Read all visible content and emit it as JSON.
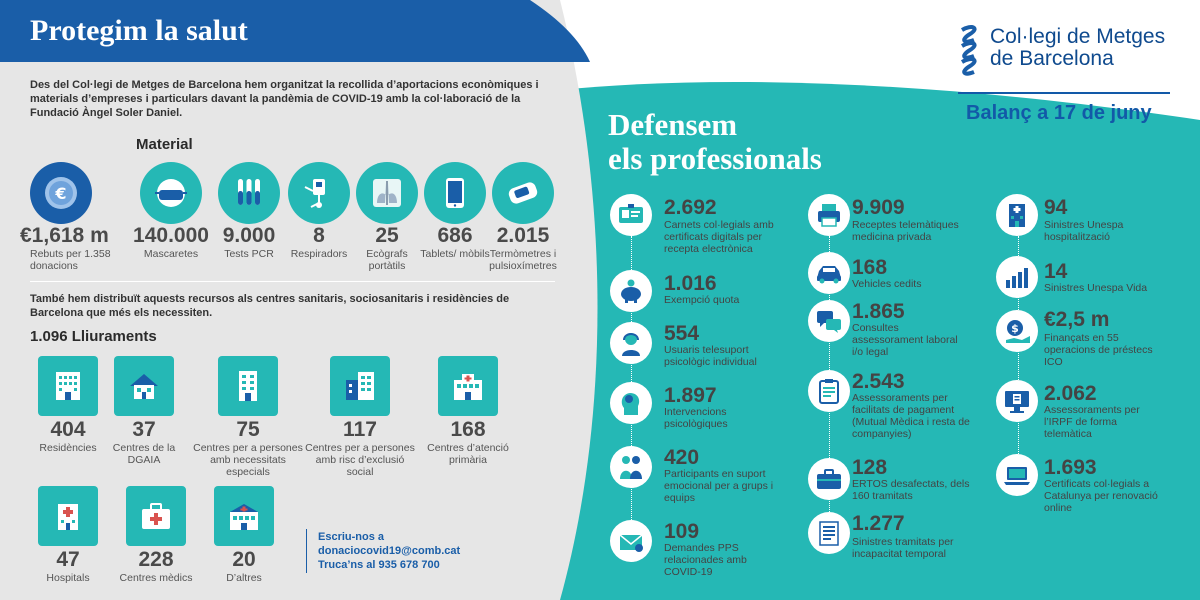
{
  "header": {
    "title": "Protegim la salut",
    "logo_text": [
      "Col·legi de Metges",
      "de Barcelona"
    ],
    "balance": "Balanç a 17 de juny"
  },
  "left": {
    "intro": "Des del Col·legi de Metges de Barcelona hem organitzat la recollida d’aportacions econòmiques i materials d’empreses i particulars davant la pandèmia de COVID-19 amb la col·laboració de la Fundació Àngel Soler Daniel.",
    "material_title": "Material",
    "material": [
      {
        "icon": "euro-coin-icon",
        "value": "€1,618 m",
        "label": "Rebuts per 1.358 donacions"
      },
      {
        "icon": "face-mask-icon",
        "value": "140.000",
        "label": "Mascaretes"
      },
      {
        "icon": "test-tubes-icon",
        "value": "9.000",
        "label": "Tests PCR"
      },
      {
        "icon": "ventilator-icon",
        "value": "8",
        "label": "Respiradors"
      },
      {
        "icon": "xray-lungs-icon",
        "value": "25",
        "label": "Ecògrafs portàtils"
      },
      {
        "icon": "tablet-icon",
        "value": "686",
        "label": "Tablets/ mòbils"
      },
      {
        "icon": "oximeter-icon",
        "value": "2.015",
        "label": "Termòmetres i pulsioxímetres"
      }
    ],
    "also": "També hem distribuït aquests recursos als centres sanitaris, sociosanitaris i residències de Barcelona que més els necessiten.",
    "deliveries_title": "1.096 Lliuraments",
    "deliveries": [
      {
        "icon": "residence-building-icon",
        "value": "404",
        "label": "Residències"
      },
      {
        "icon": "house-icon",
        "value": "37",
        "label": "Centres de la DGAIA"
      },
      {
        "icon": "tall-building-icon",
        "value": "75",
        "label": "Centres per a persones amb necessitats especials"
      },
      {
        "icon": "city-buildings-icon",
        "value": "117",
        "label": "Centres per a persones amb risc d’exclusió social"
      },
      {
        "icon": "clinic-icon",
        "value": "168",
        "label": "Centres d’atenció primària"
      },
      {
        "icon": "hospital-icon",
        "value": "47",
        "label": "Hospitals"
      },
      {
        "icon": "medical-kit-icon",
        "value": "228",
        "label": "Centres mèdics"
      },
      {
        "icon": "other-building-icon",
        "value": "20",
        "label": "D’altres"
      }
    ],
    "contact": {
      "line1": "Escriu-nos a",
      "email": "donaciocovid19@comb.cat",
      "phone": "Truca’ns al 935 678 700"
    }
  },
  "right": {
    "title": [
      "Defensem",
      "els professionals"
    ],
    "col1": [
      {
        "icon": "id-card-icon",
        "value": "2.692",
        "label": "Carnets col·legials amb certificats digitals per recepta electrònica"
      },
      {
        "icon": "piggy-bank-icon",
        "value": "1.016",
        "label": "Exempció quota"
      },
      {
        "icon": "headset-woman-icon",
        "value": "554",
        "label": "Usuaris telesuport psicològic individual"
      },
      {
        "icon": "head-profile-icon",
        "value": "1.897",
        "label": "Intervencions psicològiques"
      },
      {
        "icon": "people-support-icon",
        "value": "420",
        "label": "Participants en suport emocional per a grups i equips"
      },
      {
        "icon": "envelope-icon",
        "value": "109",
        "label": "Demandes PPS relacionades amb COVID-19"
      }
    ],
    "col2": [
      {
        "icon": "printer-icon",
        "value": "9.909",
        "label": "Receptes telemàtiques medicina privada"
      },
      {
        "icon": "car-icon",
        "value": "168",
        "label": "Vehicles cedits"
      },
      {
        "icon": "chat-bubbles-icon",
        "value": "1.865",
        "label": "Consultes assessorament laboral i/o legal"
      },
      {
        "icon": "clipboard-icon",
        "value": "2.543",
        "label": "Assessoraments per facilitats de pagament (Mutual Mèdica i resta de companyies)"
      },
      {
        "icon": "briefcase-icon",
        "value": "128",
        "label": "ERTOS desafectats, dels 160 tramitats"
      },
      {
        "icon": "document-icon",
        "value": "1.277",
        "label": "Sinistres tramitats per incapacitat temporal"
      }
    ],
    "col3": [
      {
        "icon": "hospital-building-icon",
        "value": "94",
        "label": "Sinistres Unespa hospitalització"
      },
      {
        "icon": "bar-chart-icon",
        "value": "14",
        "label": "Sinistres Unespa Vida"
      },
      {
        "icon": "dollar-hand-icon",
        "value": "€2,5 m",
        "label": "Finançats en 55 operacions de préstecs ICO"
      },
      {
        "icon": "monitor-icon",
        "value": "2.062",
        "label": "Assessoraments per l’IRPF de forma telemàtica"
      },
      {
        "icon": "laptop-icon",
        "value": "1.693",
        "label": "Certificats col·legials a Catalunya per renovació online"
      }
    ]
  },
  "colors": {
    "blue": "#1a5ea8",
    "teal": "#25b8b5",
    "grey": "#e6e6e6"
  }
}
